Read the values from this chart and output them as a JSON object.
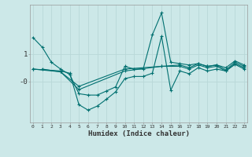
{
  "xlabel": "Humidex (Indice chaleur)",
  "background_color": "#cce8e8",
  "grid_color": "#b8d8d8",
  "line_color": "#007070",
  "x_ticks": [
    0,
    1,
    2,
    3,
    4,
    5,
    6,
    7,
    8,
    9,
    10,
    11,
    12,
    13,
    14,
    15,
    16,
    17,
    18,
    19,
    20,
    21,
    22,
    23
  ],
  "series": [
    {
      "x": [
        0,
        1,
        2,
        3,
        4,
        5,
        6,
        7,
        8,
        9,
        10,
        11,
        12,
        13,
        14,
        15,
        16,
        17,
        18,
        19,
        20,
        21,
        22,
        23
      ],
      "y": [
        1.6,
        1.25,
        0.7,
        0.45,
        0.25,
        -0.45,
        -0.5,
        -0.5,
        -0.35,
        -0.2,
        0.55,
        0.45,
        0.45,
        1.7,
        2.5,
        0.7,
        0.65,
        0.6,
        0.65,
        0.55,
        0.6,
        0.5,
        0.75,
        0.6
      ]
    },
    {
      "x": [
        0,
        3,
        4,
        5,
        6,
        7,
        8,
        9,
        10,
        11,
        12,
        13,
        14,
        15,
        16,
        17,
        18,
        19,
        20,
        21,
        22,
        23
      ],
      "y": [
        0.45,
        0.38,
        0.3,
        -0.85,
        -1.05,
        -0.9,
        -0.65,
        -0.38,
        0.1,
        0.18,
        0.18,
        0.3,
        1.65,
        -0.32,
        0.38,
        0.28,
        0.5,
        0.38,
        0.45,
        0.38,
        0.62,
        0.45
      ]
    },
    {
      "x": [
        1,
        3,
        5,
        10,
        14,
        16,
        17,
        18,
        19,
        20,
        21,
        22,
        23
      ],
      "y": [
        0.45,
        0.35,
        -0.3,
        0.38,
        0.55,
        0.55,
        0.45,
        0.6,
        0.5,
        0.55,
        0.38,
        0.65,
        0.5
      ]
    },
    {
      "x": [
        0,
        3,
        5,
        10,
        14,
        16,
        17,
        18,
        19,
        20,
        21,
        22,
        23
      ],
      "y": [
        0.45,
        0.35,
        -0.18,
        0.45,
        0.55,
        0.6,
        0.5,
        0.65,
        0.55,
        0.6,
        0.42,
        0.7,
        0.55
      ]
    }
  ],
  "ylim": [
    -1.5,
    2.8
  ],
  "xlim": [
    -0.3,
    23.3
  ],
  "ytick_positions": [
    1.0,
    0.0
  ],
  "ytick_labels": [
    "1",
    "-0"
  ]
}
